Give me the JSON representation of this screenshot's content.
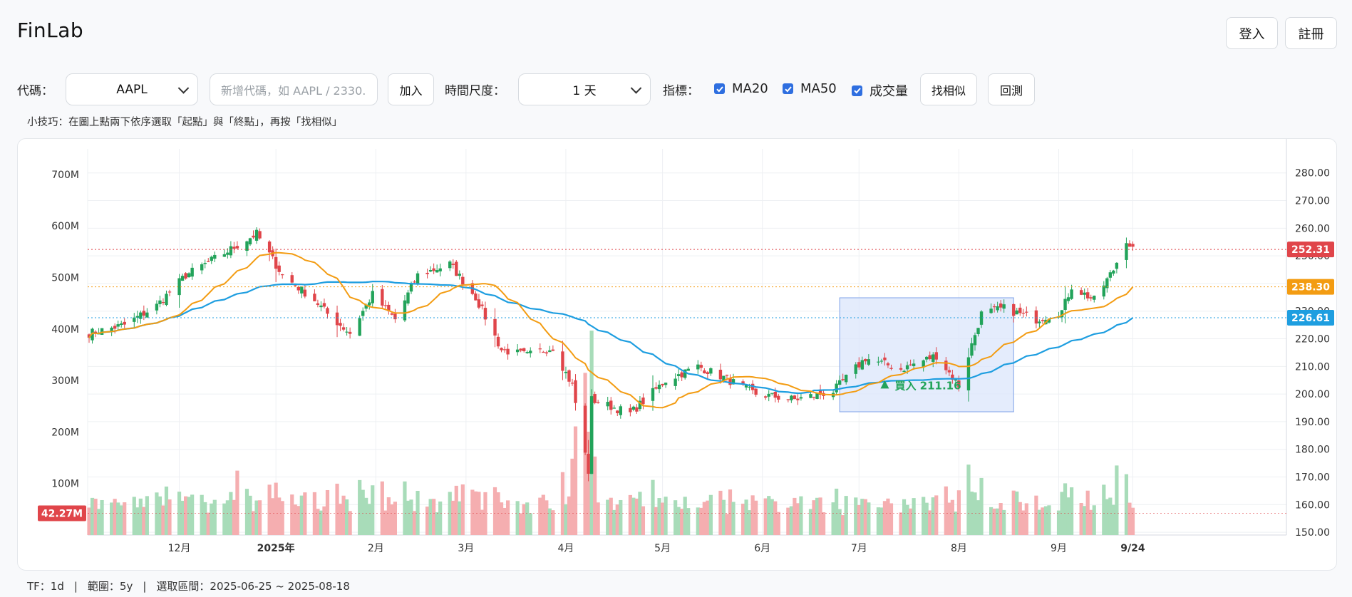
{
  "header": {
    "brand": "FinLab",
    "login_label": "登入",
    "register_label": "註冊"
  },
  "toolbar": {
    "symbol_label": "代碼：",
    "symbol_value": "AAPL",
    "add_placeholder": "新增代碼，如 AAPL / 2330.",
    "add_button": "加入",
    "timeframe_label": "時間尺度：",
    "timeframe_value": "1 天",
    "indicators_label": "指標：",
    "indicators": [
      {
        "label": "MA20",
        "checked": true
      },
      {
        "label": "MA50",
        "checked": true
      },
      {
        "label": "成交量",
        "checked": true
      }
    ],
    "find_similar_button": "找相似",
    "backtest_button": "回測"
  },
  "tip": "小技巧：在圖上點兩下依序選取「起點」與「終點」，再按「找相似」",
  "status": {
    "tf": "TF：1d",
    "range": "範圍：5y",
    "selection": "選取區間：2025-06-25 ~ 2025-08-18"
  },
  "colors": {
    "up": "#22a35a",
    "down": "#e0454a",
    "ma20": "#f39c12",
    "ma50": "#1e9ee0",
    "selection": "#dbe6fb"
  },
  "chart_data": {
    "type": "candlestick",
    "symbol": "AAPL",
    "x_tick_labels": [
      "12月",
      "2025年",
      "2月",
      "3月",
      "4月",
      "5月",
      "6月",
      "7月",
      "8月",
      "9月",
      "9/24"
    ],
    "price_axis": {
      "ticks": [
        "150.00",
        "160.00",
        "170.00",
        "180.00",
        "190.00",
        "200.00",
        "210.00",
        "220.00",
        "230.00",
        "240.00",
        "250.00",
        "260.00",
        "270.00",
        "280.00"
      ],
      "range": [
        148,
        285
      ]
    },
    "volume_axis": {
      "ticks": [
        "100M",
        "200M",
        "300M",
        "400M",
        "500M",
        "600M",
        "700M"
      ],
      "range": [
        0,
        700
      ]
    },
    "price_labels": {
      "last": "252.31",
      "ma20": "238.30",
      "ma50": "226.61",
      "volume": "42.27M"
    },
    "annotation": "買入 211.16",
    "selection": {
      "start": "2025-06-25",
      "end": "2025-08-18"
    },
    "close_keypoints": [
      {
        "date": "2024-11-04",
        "close": 222
      },
      {
        "date": "2024-11-15",
        "close": 225
      },
      {
        "date": "2024-11-25",
        "close": 232
      },
      {
        "date": "2024-12-04",
        "close": 243
      },
      {
        "date": "2024-12-16",
        "close": 251
      },
      {
        "date": "2024-12-26",
        "close": 258
      },
      {
        "date": "2025-01-03",
        "close": 243
      },
      {
        "date": "2025-01-13",
        "close": 234
      },
      {
        "date": "2025-01-17",
        "close": 229
      },
      {
        "date": "2025-01-24",
        "close": 222
      },
      {
        "date": "2025-01-31",
        "close": 236
      },
      {
        "date": "2025-02-07",
        "close": 227
      },
      {
        "date": "2025-02-14",
        "close": 243
      },
      {
        "date": "2025-02-24",
        "close": 247
      },
      {
        "date": "2025-03-04",
        "close": 235
      },
      {
        "date": "2025-03-12",
        "close": 216
      },
      {
        "date": "2025-03-20",
        "close": 214
      },
      {
        "date": "2025-03-28",
        "close": 217
      },
      {
        "date": "2025-04-03",
        "close": 203
      },
      {
        "date": "2025-04-08",
        "close": 172
      },
      {
        "date": "2025-04-09",
        "close": 198
      },
      {
        "date": "2025-04-21",
        "close": 193
      },
      {
        "date": "2025-05-02",
        "close": 205
      },
      {
        "date": "2025-05-12",
        "close": 210
      },
      {
        "date": "2025-05-20",
        "close": 206
      },
      {
        "date": "2025-05-30",
        "close": 200
      },
      {
        "date": "2025-06-11",
        "close": 198
      },
      {
        "date": "2025-06-23",
        "close": 201
      },
      {
        "date": "2025-07-03",
        "close": 213
      },
      {
        "date": "2025-07-14",
        "close": 209
      },
      {
        "date": "2025-07-25",
        "close": 214
      },
      {
        "date": "2025-08-01",
        "close": 203
      },
      {
        "date": "2025-08-08",
        "close": 229
      },
      {
        "date": "2025-08-15",
        "close": 231
      },
      {
        "date": "2025-08-25",
        "close": 227
      },
      {
        "date": "2025-09-02",
        "close": 230
      },
      {
        "date": "2025-09-05",
        "close": 239
      },
      {
        "date": "2025-09-12",
        "close": 234
      },
      {
        "date": "2025-09-18",
        "close": 245
      },
      {
        "date": "2025-09-22",
        "close": 256
      },
      {
        "date": "2025-09-24",
        "close": 252.31
      }
    ]
  }
}
